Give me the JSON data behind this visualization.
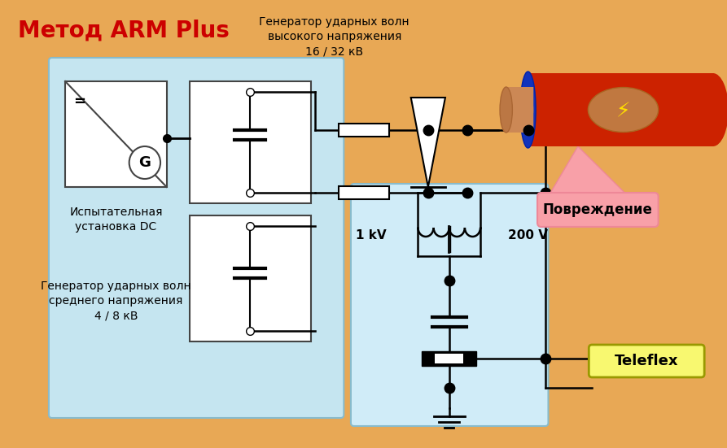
{
  "title": "Метод ARM Plus",
  "title_color": "#cc0000",
  "bg_color_outer": "#e8a855",
  "bg_color_inner": "#c5e5f0",
  "label_dc": "Испытательная\nустановка DC",
  "label_gen_high": "Генератор ударных волн\nвысокого напряжения\n16 / 32 кВ",
  "label_gen_mid": "Генератор ударных волн\nсреднего напряжения\n4 / 8 кВ",
  "label_damage": "Повреждение",
  "label_teleflex": "Teleflex",
  "label_1kv": "1 kV",
  "label_200v": "200 V"
}
